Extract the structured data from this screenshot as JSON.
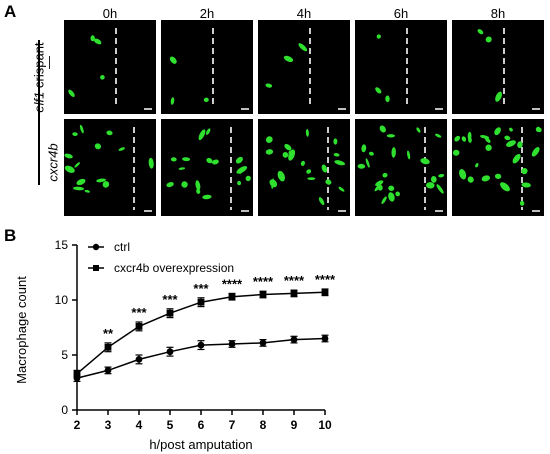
{
  "panelA": {
    "letter": "A",
    "columns": [
      "0h",
      "2h",
      "4h",
      "6h",
      "8h"
    ],
    "row_group_label_italic": "elf1",
    "row_group_label_rest": " crispant",
    "rows": [
      {
        "label": "—",
        "italic": false
      },
      {
        "label": "cxcr4b",
        "italic": true
      }
    ],
    "fluorescence_color": "#2fe02f"
  },
  "panelB": {
    "letter": "B",
    "chart_data": {
      "type": "line",
      "xlabel": "h/post amputation",
      "ylabel": "Macrophage count",
      "x": [
        2,
        3,
        4,
        5,
        6,
        7,
        8,
        9,
        10
      ],
      "xlim": [
        2,
        10
      ],
      "ylim": [
        0,
        15
      ],
      "yticks": [
        0,
        5,
        10,
        15
      ],
      "xticks": [
        2,
        3,
        4,
        5,
        6,
        7,
        8,
        9,
        10
      ],
      "legend_position": "top-left",
      "series": [
        {
          "name": "ctrl",
          "marker": "circle",
          "values": [
            2.9,
            3.6,
            4.6,
            5.3,
            5.9,
            6.0,
            6.1,
            6.4,
            6.5
          ],
          "errors": [
            0.3,
            0.3,
            0.4,
            0.4,
            0.4,
            0.3,
            0.3,
            0.3,
            0.3
          ]
        },
        {
          "name": "cxcr4b overexpression",
          "marker": "square",
          "values": [
            3.3,
            5.7,
            7.6,
            8.8,
            9.8,
            10.3,
            10.5,
            10.6,
            10.7
          ],
          "errors": [
            0.3,
            0.4,
            0.4,
            0.4,
            0.4,
            0.3,
            0.3,
            0.3,
            0.3
          ]
        }
      ],
      "annotations": [
        {
          "x": 3,
          "text": "**"
        },
        {
          "x": 4,
          "text": "***"
        },
        {
          "x": 5,
          "text": "***"
        },
        {
          "x": 6,
          "text": "***"
        },
        {
          "x": 7,
          "text": "****"
        },
        {
          "x": 8,
          "text": "****"
        },
        {
          "x": 9,
          "text": "****"
        },
        {
          "x": 10,
          "text": "****"
        }
      ]
    }
  }
}
